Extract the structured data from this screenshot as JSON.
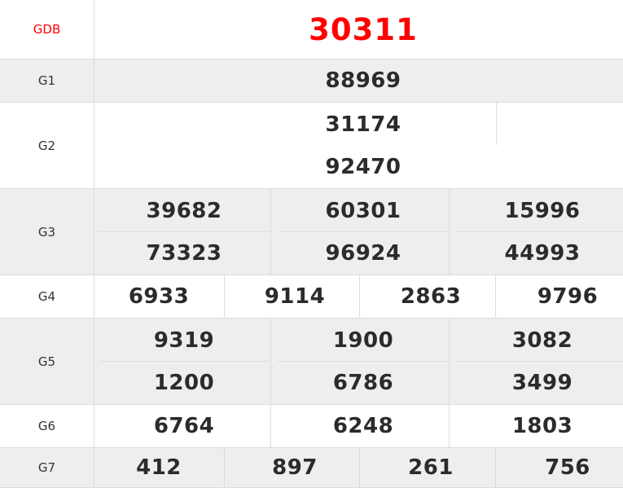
{
  "title_color": "#ff0000",
  "prizes": [
    {
      "label": "GDB",
      "numbers": [
        "30311"
      ],
      "special": true
    },
    {
      "label": "G1",
      "numbers": [
        "88969"
      ]
    },
    {
      "label": "G2",
      "numbers": [
        "31174",
        "92470"
      ]
    },
    {
      "label": "G3",
      "numbers": [
        "39682",
        "60301",
        "15996",
        "73323",
        "96924",
        "44993"
      ]
    },
    {
      "label": "G4",
      "numbers": [
        "6933",
        "9114",
        "2863",
        "9796"
      ]
    },
    {
      "label": "G5",
      "numbers": [
        "9319",
        "1900",
        "3082",
        "1200",
        "6786",
        "3499"
      ]
    },
    {
      "label": "G6",
      "numbers": [
        "6764",
        "6248",
        "1803"
      ]
    },
    {
      "label": "G7",
      "numbers": [
        "412",
        "897",
        "261",
        "756"
      ]
    }
  ]
}
